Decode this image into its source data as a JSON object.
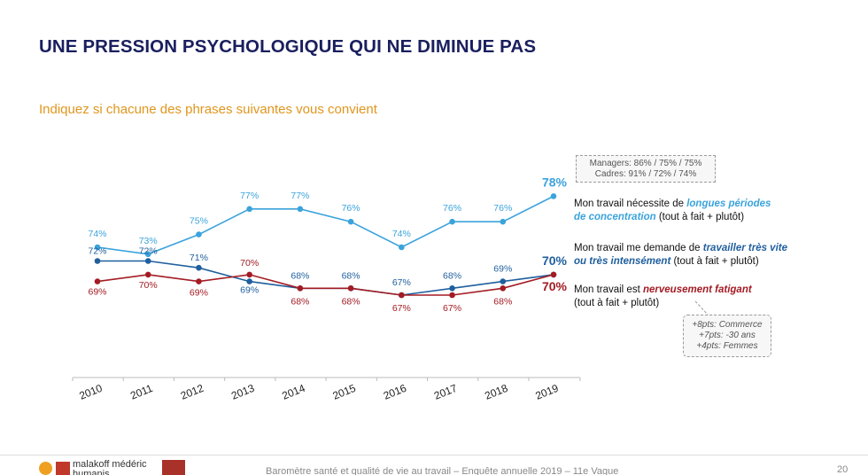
{
  "page": {
    "title": "UNE PRESSION PSYCHOLOGIQUE QUI NE DIMINUE PAS",
    "subtitle": "Indiquez si chacune des phrases suivantes vous convient",
    "footer": "Baromètre santé et qualité de vie au travail – Enquête annuelle 2019 – 11e Vague",
    "page_number": "20",
    "logo_text_line1": "malakoff médéric",
    "logo_text_line2": "humanis"
  },
  "annotations": {
    "managers_line1": "Managers: 86% / 75% / 75%",
    "managers_line2": "Cadres: 91% / 72% / 74%",
    "notes": [
      "+8pts: Commerce",
      "+7pts: -30 ans",
      "+4pts: Femmes"
    ]
  },
  "series_labels": {
    "s1_pre": "Mon travail nécessite de ",
    "s1_hl": "longues périodes",
    "s1_hl2": "de concentration",
    "s1_post": " (tout à fait + plutôt)",
    "s2_pre": "Mon travail me demande de ",
    "s2_hl": "travailler très vite",
    "s2_hl2": "ou très intensément",
    "s2_post": " (tout à fait + plutôt)",
    "s3_pre": "Mon travail est ",
    "s3_hl": "nerveusement fatigant",
    "s3_post": "(tout à fait + plutôt)"
  },
  "chart_data": {
    "type": "line",
    "x": [
      "2010",
      "2011",
      "2012",
      "2013",
      "2014",
      "2015",
      "2016",
      "2017",
      "2018",
      "2019"
    ],
    "series": [
      {
        "name": "Mon travail nécessite de longues périodes de concentration (tout à fait + plutôt)",
        "color": "#3ba3dc",
        "values": [
          74,
          73,
          75,
          77,
          77,
          76,
          74,
          76,
          76,
          78
        ]
      },
      {
        "name": "Mon travail me demande de travailler très vite ou très intensément (tout à fait + plutôt)",
        "color": "#1f5f9e",
        "values": [
          72,
          72,
          71,
          69,
          68,
          68,
          67,
          68,
          69,
          70
        ]
      },
      {
        "name": "Mon travail est nerveusement fatigant (tout à fait + plutôt)",
        "color": "#a31b23",
        "values": [
          69,
          70,
          69,
          70,
          68,
          68,
          67,
          67,
          68,
          70
        ]
      }
    ],
    "value_suffix": "%",
    "grid": false
  }
}
